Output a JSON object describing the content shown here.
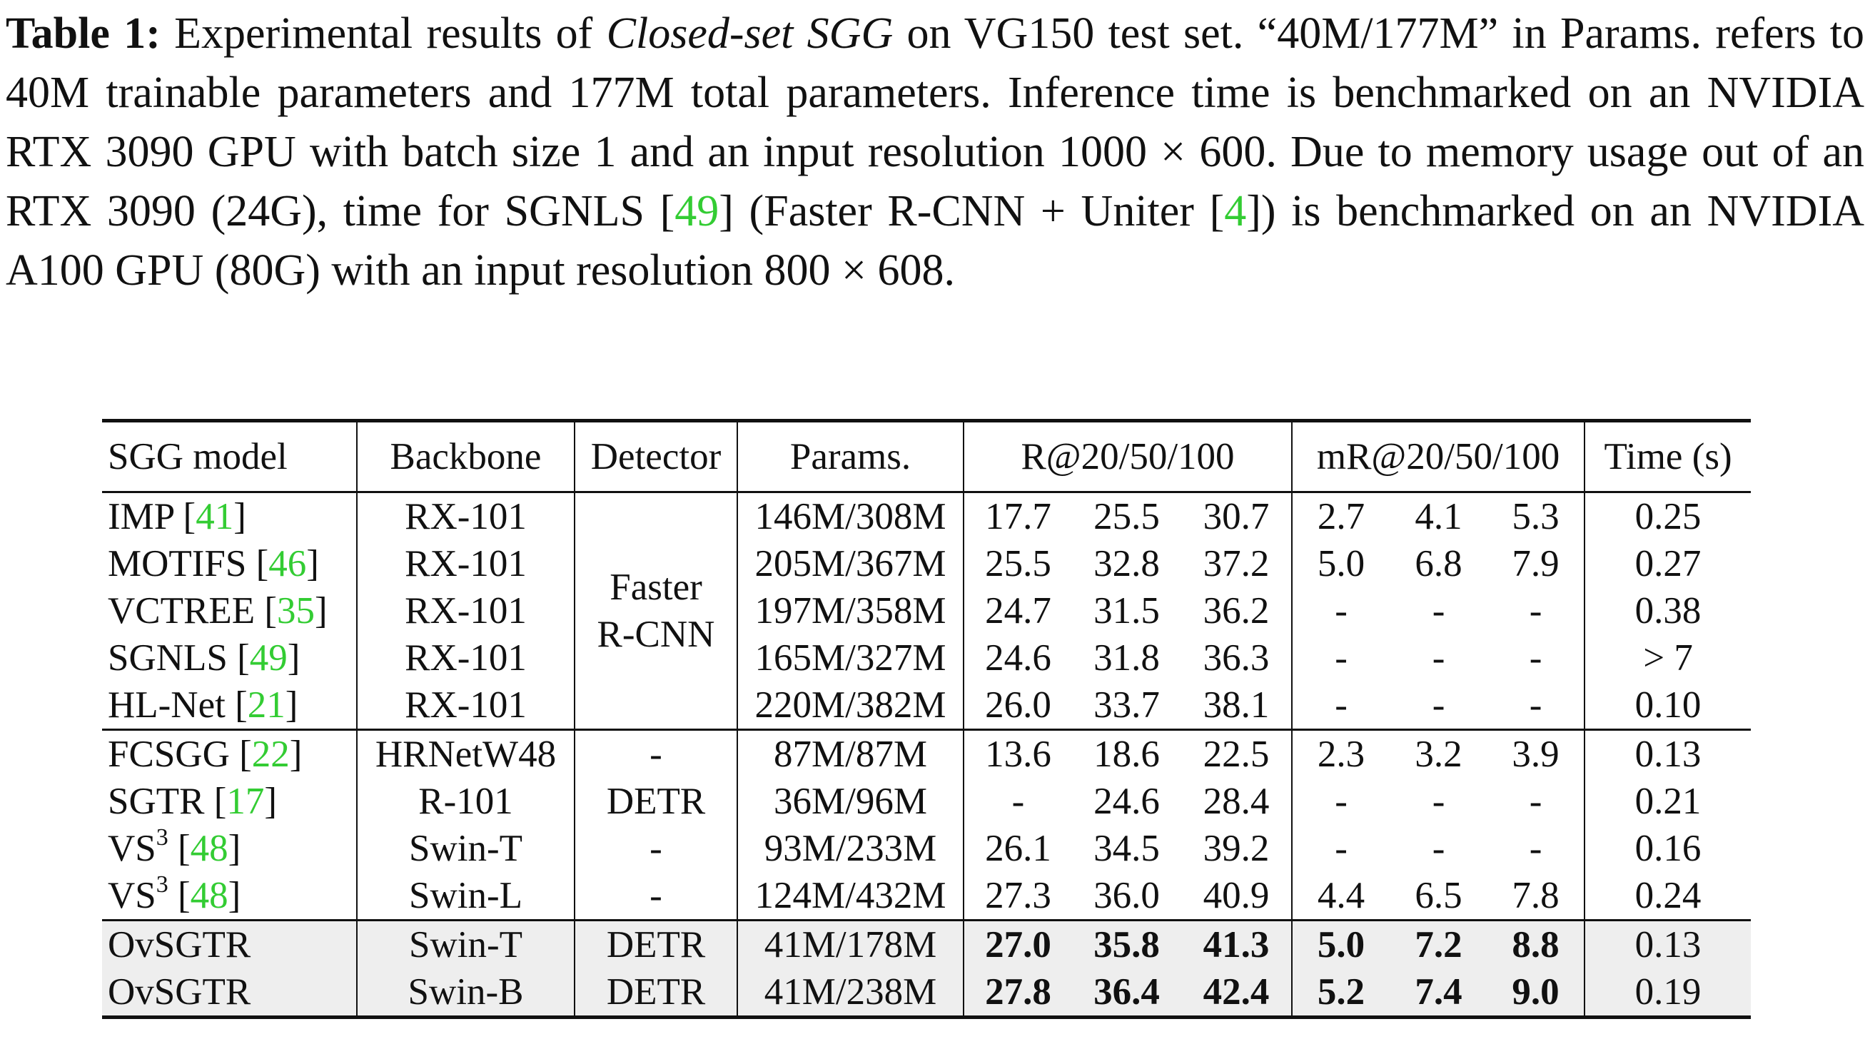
{
  "caption": {
    "label": "Table 1:",
    "text_pre": " Experimental results of ",
    "text_emph": "Closed-set SGG",
    "text_mid": " on VG150 test set. “40M/177M” in Params. refers to 40M trainable parameters and 177M total parameters. Inference time is benchmarked on an NVIDIA RTX 3090 GPU with batch size 1 and an input resolution 1000 × 600. Due to memory usage out of an RTX 3090 (24G), time for SGNLS [",
    "cite1": "49",
    "text_mid2": "] (Faster R-CNN + Uniter [",
    "cite2": "4",
    "text_end": "]) is benchmarked on an NVIDIA A100 GPU (80G) with an input resolution 800 × 608."
  },
  "table": {
    "headers": {
      "model": "SGG model",
      "backbone": "Backbone",
      "detector": "Detector",
      "params": "Params.",
      "recall": "R@20/50/100",
      "mrecall": "mR@20/50/100",
      "time": "Time (s)"
    },
    "group1_detector_line1": "Faster",
    "group1_detector_line2": "R-CNN",
    "rows": [
      {
        "model": "IMP",
        "cite": "41",
        "backbone": "RX-101",
        "params": "146M/308M",
        "r": [
          "17.7",
          "25.5",
          "30.7"
        ],
        "mr": [
          "2.7",
          "4.1",
          "5.3"
        ],
        "time": "0.25"
      },
      {
        "model": "MOTIFS",
        "cite": "46",
        "backbone": "RX-101",
        "params": "205M/367M",
        "r": [
          "25.5",
          "32.8",
          "37.2"
        ],
        "mr": [
          "5.0",
          "6.8",
          "7.9"
        ],
        "time": "0.27"
      },
      {
        "model": "VCTREE",
        "cite": "35",
        "backbone": "RX-101",
        "params": "197M/358M",
        "r": [
          "24.7",
          "31.5",
          "36.2"
        ],
        "mr": [
          "-",
          "-",
          "-"
        ],
        "time": "0.38"
      },
      {
        "model": "SGNLS",
        "cite": "49",
        "backbone": "RX-101",
        "params": "165M/327M",
        "r": [
          "24.6",
          "31.8",
          "36.3"
        ],
        "mr": [
          "-",
          "-",
          "-"
        ],
        "time": "> 7"
      },
      {
        "model": "HL-Net",
        "cite": "21",
        "backbone": "RX-101",
        "params": "220M/382M",
        "r": [
          "26.0",
          "33.7",
          "38.1"
        ],
        "mr": [
          "-",
          "-",
          "-"
        ],
        "time": "0.10"
      },
      {
        "model": "FCSGG",
        "cite": "22",
        "backbone": "HRNetW48",
        "detector": "-",
        "params": "87M/87M",
        "r": [
          "13.6",
          "18.6",
          "22.5"
        ],
        "mr": [
          "2.3",
          "3.2",
          "3.9"
        ],
        "time": "0.13"
      },
      {
        "model": "SGTR",
        "cite": "17",
        "backbone": "R-101",
        "detector": "DETR",
        "params": "36M/96M",
        "r": [
          "-",
          "24.6",
          "28.4"
        ],
        "mr": [
          "-",
          "-",
          "-"
        ],
        "time": "0.21"
      },
      {
        "model": "VS",
        "sup": "3",
        "cite": "48",
        "backbone": "Swin-T",
        "detector": "-",
        "params": "93M/233M",
        "r": [
          "26.1",
          "34.5",
          "39.2"
        ],
        "mr": [
          "-",
          "-",
          "-"
        ],
        "time": "0.16"
      },
      {
        "model": "VS",
        "sup": "3",
        "cite": "48",
        "backbone": "Swin-L",
        "detector": "-",
        "params": "124M/432M",
        "r": [
          "27.3",
          "36.0",
          "40.9"
        ],
        "mr": [
          "4.4",
          "6.5",
          "7.8"
        ],
        "time": "0.24"
      },
      {
        "model": "OvSGTR",
        "backbone": "Swin-T",
        "detector": "DETR",
        "params": "41M/178M",
        "r": [
          "27.0",
          "35.8",
          "41.3"
        ],
        "mr": [
          "5.0",
          "7.2",
          "8.8"
        ],
        "time": "0.13"
      },
      {
        "model": "OvSGTR",
        "backbone": "Swin-B",
        "detector": "DETR",
        "params": "41M/238M",
        "r": [
          "27.8",
          "36.4",
          "42.4"
        ],
        "mr": [
          "5.2",
          "7.4",
          "9.0"
        ],
        "time": "0.19"
      }
    ]
  }
}
